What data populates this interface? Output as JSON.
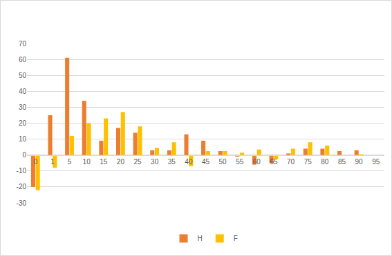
{
  "chart_data": {
    "type": "bar",
    "categories": [
      "0",
      "1",
      "5",
      "10",
      "15",
      "20",
      "25",
      "30",
      "35",
      "40",
      "45",
      "50",
      "55",
      "60",
      "65",
      "70",
      "75",
      "80",
      "85",
      "90",
      "95"
    ],
    "series": [
      {
        "name": "H",
        "color": "#ed7d31",
        "values": [
          -20,
          25,
          61,
          34,
          9,
          17,
          14,
          3,
          3,
          13,
          9,
          2.5,
          -1,
          -6,
          -5,
          1,
          4,
          4,
          2.5,
          3,
          0
        ]
      },
      {
        "name": "F",
        "color": "#ffc000",
        "values": [
          -22,
          -8,
          12,
          20,
          23,
          27,
          18,
          4.5,
          8,
          -7,
          2.5,
          2.5,
          1.5,
          3.5,
          -2.5,
          4,
          8,
          6,
          0,
          0.5,
          0
        ]
      }
    ],
    "ylim": [
      -30,
      70
    ],
    "yticks": [
      -30,
      -20,
      -10,
      0,
      10,
      20,
      30,
      40,
      50,
      60,
      70
    ],
    "grid": true,
    "legend": "bottom"
  }
}
